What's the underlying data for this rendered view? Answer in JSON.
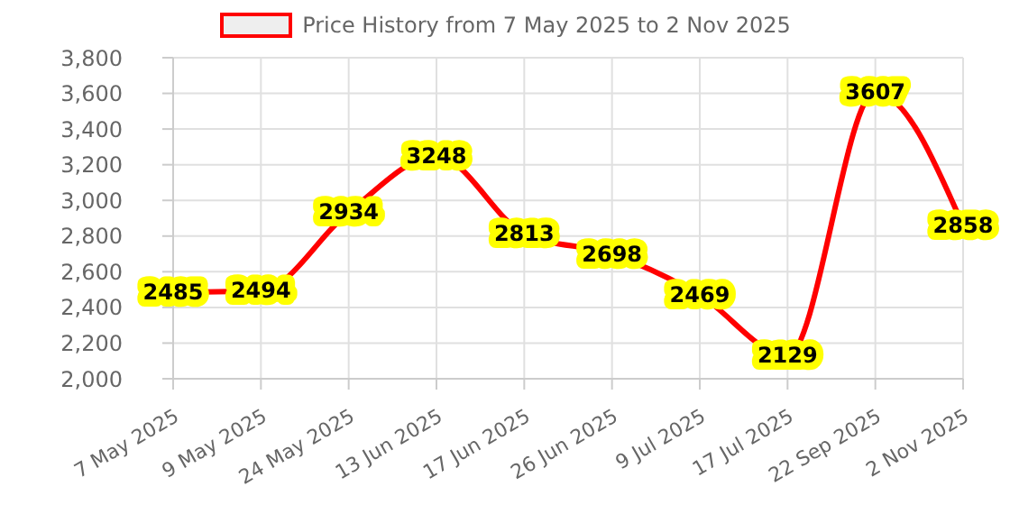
{
  "chart_data": {
    "type": "line",
    "categories": [
      "7 May 2025",
      "9 May 2025",
      "24 May 2025",
      "13 Jun 2025",
      "17 Jun 2025",
      "26 Jun 2025",
      "9 Jul 2025",
      "17 Jul 2025",
      "22 Sep 2025",
      "2 Nov 2025"
    ],
    "series": [
      {
        "name": "Price History from 7 May 2025 to 2 Nov 2025",
        "color": "#ff0000",
        "values": [
          2485,
          2494,
          2934,
          3248,
          2813,
          2698,
          2469,
          2129,
          3607,
          2858
        ]
      }
    ],
    "ylim": [
      2000,
      3800
    ],
    "yticks": [
      {
        "value": 2000,
        "label": "2,000"
      },
      {
        "value": 2200,
        "label": "2,200"
      },
      {
        "value": 2400,
        "label": "2,400"
      },
      {
        "value": 2600,
        "label": "2,600"
      },
      {
        "value": 2800,
        "label": "2,800"
      },
      {
        "value": 3000,
        "label": "3,000"
      },
      {
        "value": 3200,
        "label": "3,200"
      },
      {
        "value": 3400,
        "label": "3,400"
      },
      {
        "value": 3600,
        "label": "3,600"
      },
      {
        "value": 3800,
        "label": "3,800"
      }
    ],
    "grid": true,
    "legend": "top",
    "marker": "none",
    "line_style": "solid",
    "data_labels": true
  }
}
